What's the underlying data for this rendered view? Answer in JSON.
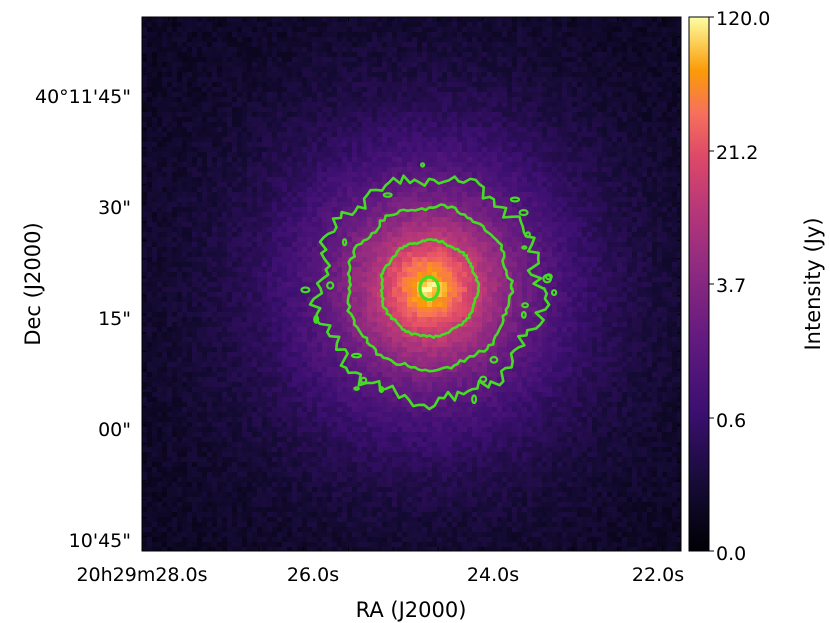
{
  "chart_data": {
    "type": "heatmap",
    "title": "",
    "xlabel": "RA (J2000)",
    "ylabel": "Dec (J2000)",
    "colorbar_label": "Intensity (Jy)",
    "colormap": "plasma-like (black → purple → magenta → orange → pale yellow)",
    "scale": "log-like stretch",
    "x_ticks": [
      {
        "label": "20h29m28.0s",
        "value_s": 28.0
      },
      {
        "label": "26.0s",
        "value_s": 26.0
      },
      {
        "label": "24.0s",
        "value_s": 24.0
      },
      {
        "label": "22.0s",
        "value_s": 22.0
      }
    ],
    "y_ticks": [
      {
        "label": "40°11'45\"",
        "value_arcsec": 105
      },
      {
        "label": "30\"",
        "value_arcsec": 90
      },
      {
        "label": "15\"",
        "value_arcsec": 75
      },
      {
        "label": "00\"",
        "value_arcsec": 60
      },
      {
        "label": "10'45\"",
        "value_arcsec": 45
      }
    ],
    "colorbar_ticks": [
      {
        "label": "120.0",
        "value": 120.0
      },
      {
        "label": "21.2",
        "value": 21.2
      },
      {
        "label": "3.7",
        "value": 3.7
      },
      {
        "label": "0.6",
        "value": 0.6
      },
      {
        "label": "0.0",
        "value": 0.0
      }
    ],
    "source_center": {
      "ra_s": 24.8,
      "dec_arcsec": 79
    },
    "contour_color": "#44dd22",
    "contours": [
      {
        "level": "outer",
        "radius_arcsec": 15
      },
      {
        "level": "middle",
        "radius_arcsec": 11
      },
      {
        "level": "inner",
        "radius_arcsec": 6.5
      },
      {
        "level": "core",
        "radius_arcsec": 1.4
      }
    ]
  }
}
